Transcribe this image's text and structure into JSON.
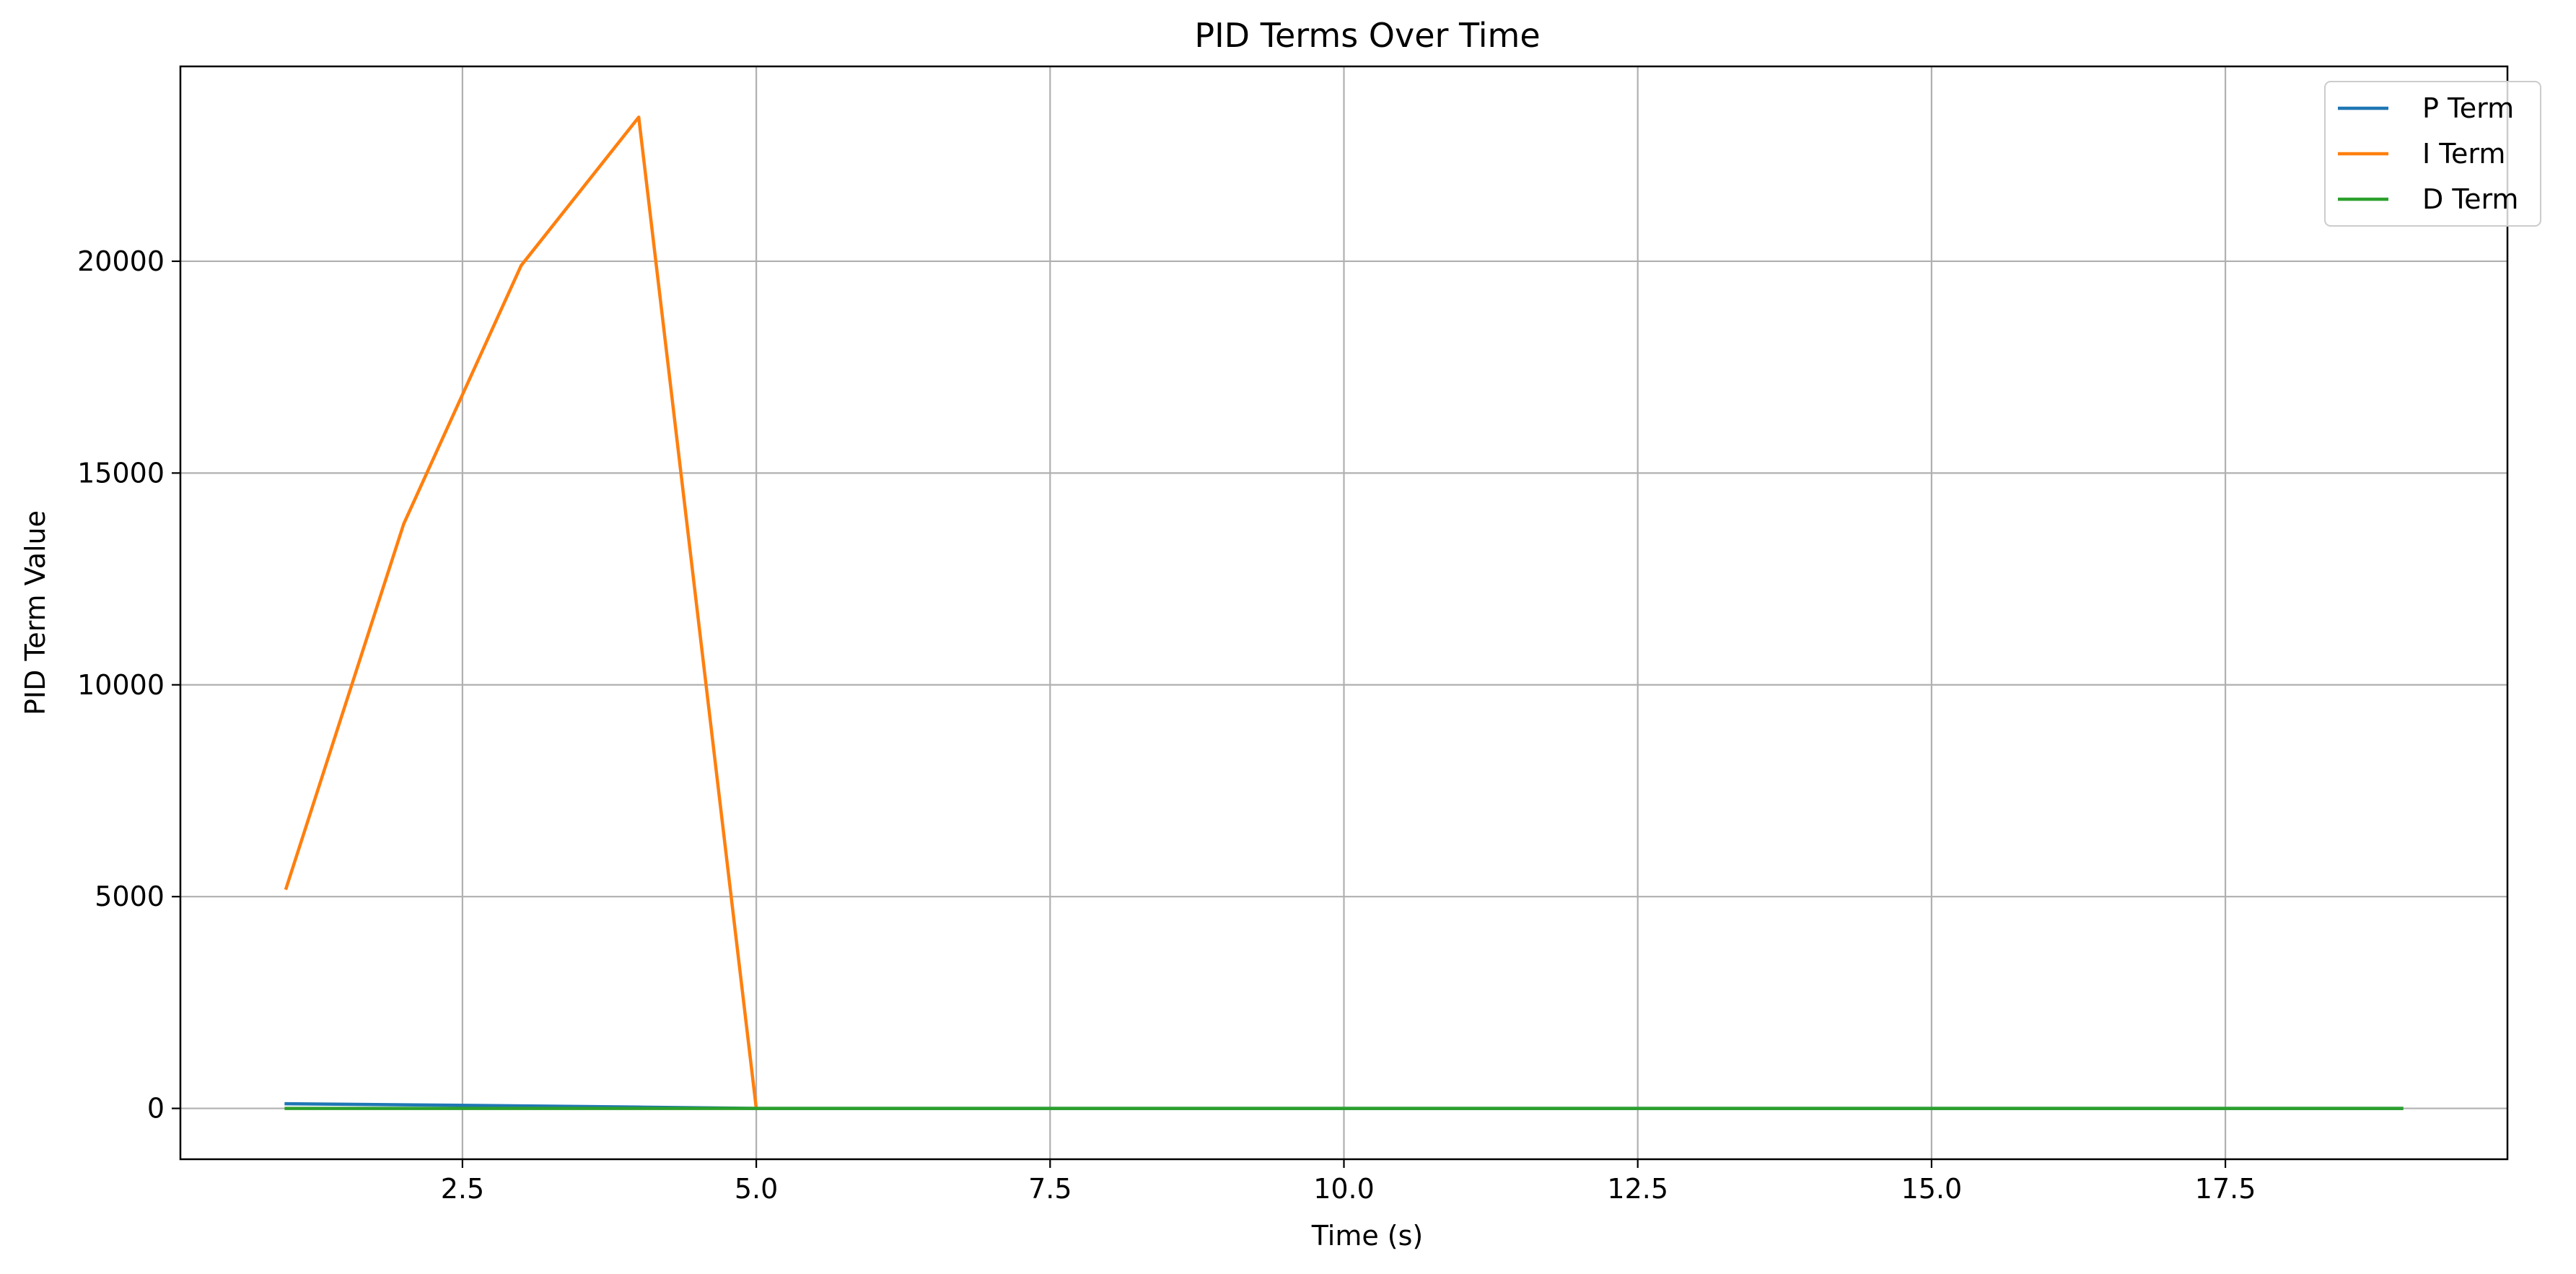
{
  "chart_data": {
    "type": "line",
    "title": "PID Terms Over Time",
    "xlabel": "Time (s)",
    "ylabel": "PID Term Value",
    "xlim": [
      0.1,
      19.9
    ],
    "ylim": [
      -1200,
      24600
    ],
    "xticks": [
      2.5,
      5.0,
      7.5,
      10.0,
      12.5,
      15.0,
      17.5
    ],
    "xtick_labels": [
      "2.5",
      "5.0",
      "7.5",
      "10.0",
      "12.5",
      "15.0",
      "17.5"
    ],
    "yticks": [
      0,
      5000,
      10000,
      15000,
      20000
    ],
    "ytick_labels": [
      "0",
      "5000",
      "10000",
      "15000",
      "20000"
    ],
    "grid": true,
    "legend_position": "top-right",
    "x": [
      1,
      2,
      3,
      4,
      5,
      6,
      7,
      8,
      9,
      10,
      11,
      12,
      13,
      14,
      15,
      16,
      17,
      18,
      19
    ],
    "series": [
      {
        "name": "P Term",
        "color": "#1f77b4",
        "values": [
          110,
          85,
          60,
          30,
          0,
          0,
          0,
          0,
          0,
          0,
          0,
          0,
          0,
          0,
          0,
          0,
          0,
          0,
          0
        ]
      },
      {
        "name": "I Term",
        "color": "#ff7f0e",
        "values": [
          5200,
          13800,
          19900,
          23400,
          0,
          null,
          null,
          null,
          null,
          null,
          null,
          null,
          null,
          null,
          null,
          null,
          null,
          null,
          null
        ]
      },
      {
        "name": "D Term",
        "color": "#2ca02c",
        "values": [
          0,
          0,
          0,
          0,
          0,
          0,
          0,
          0,
          0,
          0,
          0,
          0,
          0,
          0,
          0,
          0,
          0,
          0,
          0
        ]
      }
    ]
  }
}
